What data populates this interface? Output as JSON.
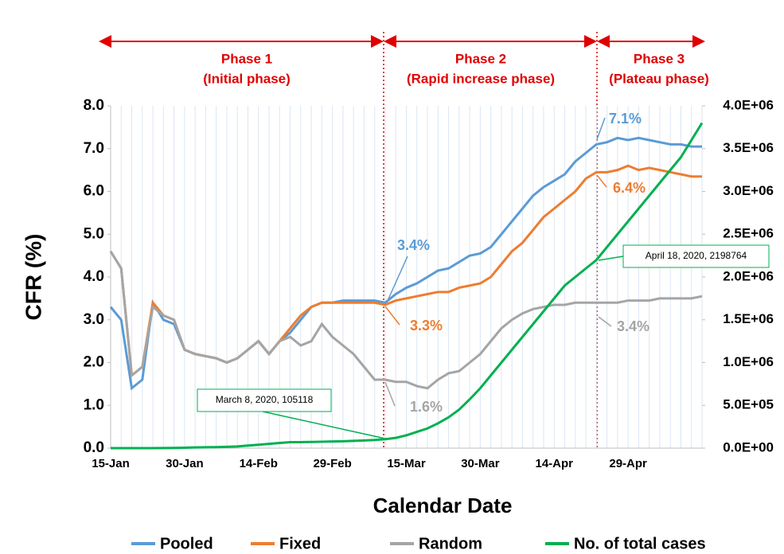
{
  "chart_data": {
    "type": "line",
    "y_label": "CFR (%)",
    "x_label": "Calendar Date",
    "x": [
      "15-Jan",
      null,
      null,
      null,
      null,
      null,
      null,
      "30-Jan",
      null,
      null,
      null,
      null,
      null,
      null,
      "14-Feb",
      null,
      null,
      null,
      null,
      null,
      null,
      "29-Feb",
      null,
      null,
      null,
      null,
      null,
      null,
      "15-Mar",
      null,
      null,
      null,
      null,
      null,
      null,
      "30-Mar",
      null,
      null,
      null,
      null,
      null,
      null,
      "14-Apr",
      null,
      null,
      null,
      null,
      null,
      null,
      "29-Apr",
      null,
      null,
      null,
      null,
      null,
      null,
      null
    ],
    "ylim": [
      0,
      8
    ],
    "yticks": [
      {
        "value": 0,
        "label": "0.0"
      },
      {
        "value": 1,
        "label": "1.0"
      },
      {
        "value": 2,
        "label": "2.0"
      },
      {
        "value": 3,
        "label": "3.0"
      },
      {
        "value": 4,
        "label": "4.0"
      },
      {
        "value": 5,
        "label": "5.0"
      },
      {
        "value": 6,
        "label": "6.0"
      },
      {
        "value": 7,
        "label": "7.0"
      },
      {
        "value": 8,
        "label": "8.0"
      }
    ],
    "y2lim": [
      0,
      4000000
    ],
    "y2ticks": [
      {
        "value": 0,
        "label": "0.0E+00"
      },
      {
        "value": 500000,
        "label": "5.0E+05"
      },
      {
        "value": 1000000,
        "label": "1.0E+06"
      },
      {
        "value": 1500000,
        "label": "1.5E+06"
      },
      {
        "value": 2000000,
        "label": "2.0E+06"
      },
      {
        "value": 2500000,
        "label": "2.5E+06"
      },
      {
        "value": 3000000,
        "label": "3.0E+06"
      },
      {
        "value": 3500000,
        "label": "3.5E+06"
      },
      {
        "value": 4000000,
        "label": "4.0E+06"
      }
    ],
    "series": [
      {
        "name": "Pooled",
        "color": "#5b9bd5",
        "values": [
          3.3,
          3.0,
          1.4,
          1.6,
          3.4,
          3.0,
          2.9,
          2.3,
          2.2,
          2.15,
          2.1,
          2.0,
          2.1,
          2.3,
          2.5,
          2.2,
          2.5,
          2.7,
          3.0,
          3.3,
          3.4,
          3.4,
          3.45,
          3.45,
          3.45,
          3.45,
          3.4,
          3.6,
          3.75,
          3.85,
          4.0,
          4.15,
          4.2,
          4.35,
          4.5,
          4.55,
          4.7,
          5.0,
          5.3,
          5.6,
          5.9,
          6.1,
          6.25,
          6.4,
          6.7,
          6.9,
          7.1,
          7.15,
          7.25,
          7.2,
          7.25,
          7.2,
          7.15,
          7.1,
          7.1,
          7.05,
          7.05
        ]
      },
      {
        "name": "Fixed",
        "color": "#ed7d31",
        "values": [
          4.6,
          4.2,
          1.7,
          1.9,
          3.4,
          3.1,
          3.0,
          2.3,
          2.2,
          2.15,
          2.1,
          2.0,
          2.1,
          2.3,
          2.5,
          2.2,
          2.5,
          2.8,
          3.1,
          3.3,
          3.4,
          3.4,
          3.4,
          3.4,
          3.4,
          3.4,
          3.35,
          3.45,
          3.5,
          3.55,
          3.6,
          3.65,
          3.65,
          3.75,
          3.8,
          3.85,
          4.0,
          4.3,
          4.6,
          4.8,
          5.1,
          5.4,
          5.6,
          5.8,
          6.0,
          6.3,
          6.45,
          6.45,
          6.5,
          6.6,
          6.5,
          6.55,
          6.5,
          6.45,
          6.4,
          6.35,
          6.35
        ]
      },
      {
        "name": "Random",
        "color": "#a5a5a5",
        "values": [
          4.6,
          4.2,
          1.7,
          1.9,
          3.3,
          3.1,
          3.0,
          2.3,
          2.2,
          2.15,
          2.1,
          2.0,
          2.1,
          2.3,
          2.5,
          2.2,
          2.5,
          2.6,
          2.4,
          2.5,
          2.9,
          2.6,
          2.4,
          2.2,
          1.9,
          1.6,
          1.6,
          1.55,
          1.55,
          1.45,
          1.4,
          1.6,
          1.75,
          1.8,
          2.0,
          2.2,
          2.5,
          2.8,
          3.0,
          3.15,
          3.25,
          3.3,
          3.35,
          3.35,
          3.4,
          3.4,
          3.4,
          3.4,
          3.4,
          3.45,
          3.45,
          3.45,
          3.5,
          3.5,
          3.5,
          3.5,
          3.55
        ]
      },
      {
        "name": "No. of total cases",
        "color": "#00b050",
        "axis": "y2",
        "values": [
          0,
          0,
          0,
          0,
          0,
          1000,
          2000,
          5000,
          8000,
          10000,
          12000,
          15000,
          20000,
          30000,
          40000,
          50000,
          60000,
          70000,
          70000,
          72000,
          75000,
          78000,
          80000,
          85000,
          90000,
          95000,
          105118,
          120000,
          150000,
          190000,
          230000,
          290000,
          360000,
          450000,
          570000,
          700000,
          850000,
          1000000,
          1150000,
          1300000,
          1450000,
          1600000,
          1750000,
          1900000,
          2000000,
          2100000,
          2198764,
          2350000,
          2500000,
          2650000,
          2800000,
          2950000,
          3100000,
          3250000,
          3400000,
          3600000,
          3800000
        ]
      }
    ],
    "phases": [
      [
        "Phase 1",
        "(Initial phase)"
      ],
      [
        "Phase 2",
        "(Rapid increase phase)"
      ],
      [
        "Phase 3",
        "(Plateau phase)"
      ]
    ],
    "annotations": [
      {
        "text": "7.1%",
        "color": "#5b9bd5"
      },
      {
        "text": "6.4%",
        "color": "#ed7d31"
      },
      {
        "text": "3.4%",
        "color": "#5b9bd5"
      },
      {
        "text": "3.3%",
        "color": "#ed7d31"
      },
      {
        "text": "1.6%",
        "color": "#a5a5a5"
      },
      {
        "text": "3.4%",
        "color": "#a5a5a5"
      },
      {
        "text": "March 8, 2020, 105118",
        "color": "#00b050"
      },
      {
        "text": "April 18, 2020, 2198764",
        "color": "#00b050"
      }
    ]
  }
}
